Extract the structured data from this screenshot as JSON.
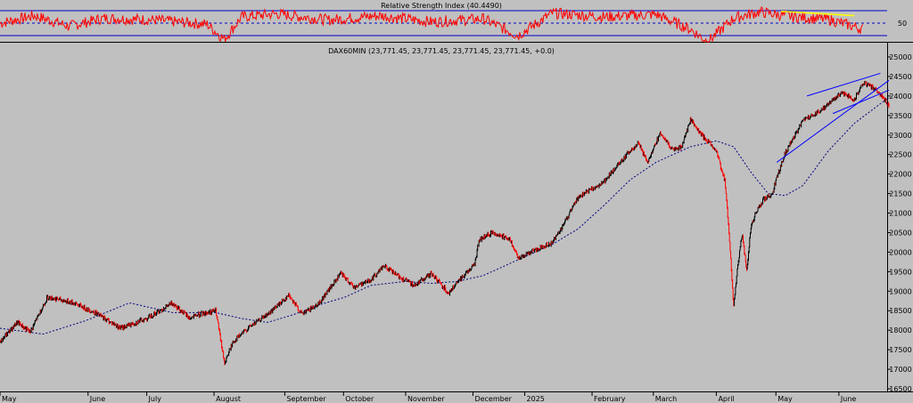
{
  "chart_data": [
    {
      "type": "line",
      "title": "Relative Strength Index (40.4490)",
      "ylim": [
        0,
        100
      ],
      "upper_level": 70,
      "middle_level": 50,
      "lower_level": 30,
      "y_tick_labels": [
        "50"
      ],
      "colors": {
        "line": "#ff0000",
        "levels": "#0000cc",
        "trendline": "#ffff00"
      },
      "key_points": [
        {
          "t": 0,
          "v": 50
        },
        {
          "t": 0.04,
          "v": 62
        },
        {
          "t": 0.08,
          "v": 45
        },
        {
          "t": 0.12,
          "v": 58
        },
        {
          "t": 0.18,
          "v": 55
        },
        {
          "t": 0.24,
          "v": 48
        },
        {
          "t": 0.26,
          "v": 24
        },
        {
          "t": 0.28,
          "v": 60
        },
        {
          "t": 0.32,
          "v": 65
        },
        {
          "t": 0.38,
          "v": 55
        },
        {
          "t": 0.44,
          "v": 62
        },
        {
          "t": 0.5,
          "v": 52
        },
        {
          "t": 0.56,
          "v": 57
        },
        {
          "t": 0.6,
          "v": 30
        },
        {
          "t": 0.64,
          "v": 66
        },
        {
          "t": 0.7,
          "v": 60
        },
        {
          "t": 0.76,
          "v": 64
        },
        {
          "t": 0.8,
          "v": 40
        },
        {
          "t": 0.82,
          "v": 20
        },
        {
          "t": 0.85,
          "v": 58
        },
        {
          "t": 0.88,
          "v": 68
        },
        {
          "t": 0.92,
          "v": 60
        },
        {
          "t": 0.96,
          "v": 56
        },
        {
          "t": 1,
          "v": 40.4
        }
      ]
    },
    {
      "type": "line",
      "title": "DAX60MIN (23,771.45, 23,771.45, 23,771.45, 23,771.45, +0.0)",
      "ylim": [
        16500,
        25200
      ],
      "y_ticks": [
        16500,
        17000,
        17500,
        18000,
        18500,
        19000,
        19500,
        20000,
        20500,
        21000,
        21500,
        22000,
        22500,
        23000,
        23500,
        24000,
        24500,
        25000
      ],
      "y_tick_labels": [
        "16500",
        "17000",
        "17500",
        "18000",
        "18500",
        "19000",
        "19500",
        "20000",
        "20500",
        "21000",
        "21500",
        "22000",
        "22500",
        "23000",
        "23500",
        "24000",
        "24500",
        "25000"
      ],
      "categories": [
        "May",
        "June",
        "July",
        "August",
        "September",
        "October",
        "November",
        "December",
        "2025",
        "February",
        "March",
        "April",
        "May",
        "June"
      ],
      "category_positions": [
        0.0,
        0.102,
        0.17,
        0.248,
        0.33,
        0.398,
        0.47,
        0.548,
        0.608,
        0.686,
        0.757,
        0.83,
        0.899,
        0.972
      ],
      "series": [
        {
          "role": "price",
          "color": "#000000",
          "points": [
            {
              "t": 0.0,
              "v": 17700
            },
            {
              "t": 0.02,
              "v": 18200
            },
            {
              "t": 0.035,
              "v": 17950
            },
            {
              "t": 0.055,
              "v": 18850
            },
            {
              "t": 0.085,
              "v": 18700
            },
            {
              "t": 0.11,
              "v": 18450
            },
            {
              "t": 0.14,
              "v": 18050
            },
            {
              "t": 0.17,
              "v": 18300
            },
            {
              "t": 0.2,
              "v": 18700
            },
            {
              "t": 0.22,
              "v": 18300
            },
            {
              "t": 0.23,
              "v": 18400
            },
            {
              "t": 0.25,
              "v": 18500
            },
            {
              "t": 0.26,
              "v": 17150
            },
            {
              "t": 0.27,
              "v": 17700
            },
            {
              "t": 0.29,
              "v": 18100
            },
            {
              "t": 0.31,
              "v": 18400
            },
            {
              "t": 0.335,
              "v": 18900
            },
            {
              "t": 0.35,
              "v": 18400
            },
            {
              "t": 0.37,
              "v": 18700
            },
            {
              "t": 0.395,
              "v": 19450
            },
            {
              "t": 0.41,
              "v": 19100
            },
            {
              "t": 0.43,
              "v": 19300
            },
            {
              "t": 0.445,
              "v": 19650
            },
            {
              "t": 0.46,
              "v": 19400
            },
            {
              "t": 0.48,
              "v": 19150
            },
            {
              "t": 0.5,
              "v": 19450
            },
            {
              "t": 0.52,
              "v": 18950
            },
            {
              "t": 0.535,
              "v": 19350
            },
            {
              "t": 0.55,
              "v": 19700
            },
            {
              "t": 0.555,
              "v": 20300
            },
            {
              "t": 0.57,
              "v": 20500
            },
            {
              "t": 0.59,
              "v": 20350
            },
            {
              "t": 0.6,
              "v": 19850
            },
            {
              "t": 0.62,
              "v": 20050
            },
            {
              "t": 0.64,
              "v": 20250
            },
            {
              "t": 0.65,
              "v": 20600
            },
            {
              "t": 0.67,
              "v": 21400
            },
            {
              "t": 0.7,
              "v": 21800
            },
            {
              "t": 0.72,
              "v": 22350
            },
            {
              "t": 0.74,
              "v": 22800
            },
            {
              "t": 0.75,
              "v": 22300
            },
            {
              "t": 0.765,
              "v": 23050
            },
            {
              "t": 0.78,
              "v": 22600
            },
            {
              "t": 0.79,
              "v": 22700
            },
            {
              "t": 0.8,
              "v": 23400
            },
            {
              "t": 0.815,
              "v": 22950
            },
            {
              "t": 0.83,
              "v": 22600
            },
            {
              "t": 0.84,
              "v": 21800
            },
            {
              "t": 0.845,
              "v": 20400
            },
            {
              "t": 0.85,
              "v": 18600
            },
            {
              "t": 0.855,
              "v": 19700
            },
            {
              "t": 0.86,
              "v": 20500
            },
            {
              "t": 0.865,
              "v": 19500
            },
            {
              "t": 0.87,
              "v": 20600
            },
            {
              "t": 0.875,
              "v": 21000
            },
            {
              "t": 0.885,
              "v": 21350
            },
            {
              "t": 0.895,
              "v": 21500
            },
            {
              "t": 0.9,
              "v": 21900
            },
            {
              "t": 0.91,
              "v": 22550
            },
            {
              "t": 0.93,
              "v": 23350
            },
            {
              "t": 0.955,
              "v": 23700
            },
            {
              "t": 0.975,
              "v": 24100
            },
            {
              "t": 0.99,
              "v": 23900
            },
            {
              "t": 1.0,
              "v": 24350
            },
            {
              "t": 1.015,
              "v": 24150
            },
            {
              "t": 1.03,
              "v": 23771
            }
          ]
        },
        {
          "role": "moving-average",
          "color": "#000080",
          "points": [
            {
              "t": 0.0,
              "v": 18050
            },
            {
              "t": 0.05,
              "v": 17900
            },
            {
              "t": 0.1,
              "v": 18250
            },
            {
              "t": 0.15,
              "v": 18700
            },
            {
              "t": 0.2,
              "v": 18450
            },
            {
              "t": 0.25,
              "v": 18450
            },
            {
              "t": 0.28,
              "v": 18300
            },
            {
              "t": 0.31,
              "v": 18200
            },
            {
              "t": 0.34,
              "v": 18400
            },
            {
              "t": 0.37,
              "v": 18650
            },
            {
              "t": 0.4,
              "v": 18850
            },
            {
              "t": 0.43,
              "v": 19150
            },
            {
              "t": 0.47,
              "v": 19250
            },
            {
              "t": 0.5,
              "v": 19200
            },
            {
              "t": 0.53,
              "v": 19250
            },
            {
              "t": 0.56,
              "v": 19400
            },
            {
              "t": 0.6,
              "v": 19800
            },
            {
              "t": 0.64,
              "v": 20200
            },
            {
              "t": 0.67,
              "v": 20600
            },
            {
              "t": 0.7,
              "v": 21200
            },
            {
              "t": 0.73,
              "v": 21850
            },
            {
              "t": 0.76,
              "v": 22300
            },
            {
              "t": 0.8,
              "v": 22700
            },
            {
              "t": 0.83,
              "v": 22850
            },
            {
              "t": 0.85,
              "v": 22700
            },
            {
              "t": 0.87,
              "v": 22050
            },
            {
              "t": 0.89,
              "v": 21500
            },
            {
              "t": 0.91,
              "v": 21450
            },
            {
              "t": 0.93,
              "v": 21700
            },
            {
              "t": 0.96,
              "v": 22600
            },
            {
              "t": 0.99,
              "v": 23300
            },
            {
              "t": 1.02,
              "v": 23800
            },
            {
              "t": 1.03,
              "v": 23950
            }
          ]
        }
      ],
      "trendlines": [
        {
          "color": "#0000ff",
          "from": {
            "t": 0.9,
            "v": 22300
          },
          "to": {
            "t": 1.03,
            "v": 24400
          }
        },
        {
          "color": "#0000ff",
          "from": {
            "t": 0.935,
            "v": 24000
          },
          "to": {
            "t": 1.02,
            "v": 24580
          }
        },
        {
          "color": "#0000ff",
          "from": {
            "t": 0.965,
            "v": 23550
          },
          "to": {
            "t": 1.03,
            "v": 24150
          }
        }
      ]
    }
  ]
}
